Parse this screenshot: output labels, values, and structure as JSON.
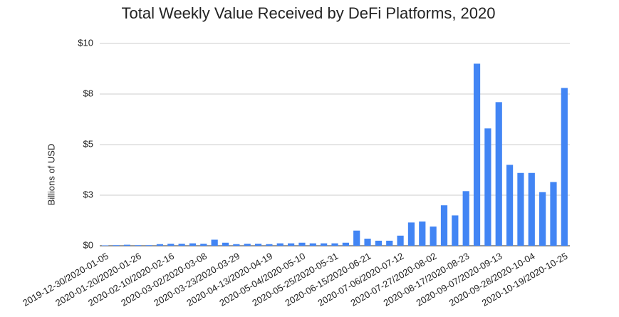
{
  "chart_data": {
    "type": "bar",
    "title": "Total Weekly Value Received by DeFi Platforms, 2020",
    "y_label": "Billions of USD",
    "color": "#4285f4",
    "grid": true,
    "categories": [
      "2019-12-30/2020-01-05",
      null,
      null,
      "2020-01-20/2020-01-26",
      null,
      null,
      "2020-02-10/2020-02-16",
      null,
      null,
      "2020-03-02/2020-03-08",
      null,
      null,
      "2020-03-23/2020-03-29",
      null,
      null,
      "2020-04-13/2020-04-19",
      null,
      null,
      "2020-05-04/2020-05-10",
      null,
      null,
      "2020-05-25/2020-05-31",
      null,
      null,
      "2020-06-15/2020-06-21",
      null,
      null,
      "2020-07-06/2020-07-12",
      null,
      null,
      "2020-07-27/2020-08-02",
      null,
      null,
      "2020-08-17/2020-08-23",
      null,
      null,
      "2020-09-07/2020-09-13",
      null,
      null,
      "2020-09-28/2020-10-04",
      null,
      null,
      "2020-10-19/2020-10-25"
    ],
    "values": [
      0.02,
      0.03,
      0.05,
      0.03,
      0.03,
      0.08,
      0.1,
      0.1,
      0.12,
      0.1,
      0.3,
      0.15,
      0.08,
      0.1,
      0.1,
      0.08,
      0.12,
      0.12,
      0.15,
      0.12,
      0.12,
      0.12,
      0.15,
      0.75,
      0.35,
      0.25,
      0.25,
      0.5,
      1.15,
      1.2,
      0.95,
      2.0,
      1.5,
      2.7,
      9.0,
      5.8,
      7.1,
      4.0,
      3.6,
      3.6,
      2.65,
      3.15,
      7.8
    ],
    "ylim": [
      0,
      10
    ],
    "yticks": [
      {
        "value": 0,
        "label": "$0"
      },
      {
        "value": 2.5,
        "label": "$3"
      },
      {
        "value": 5,
        "label": "$5"
      },
      {
        "value": 7.5,
        "label": "$8"
      },
      {
        "value": 10,
        "label": "$10"
      }
    ]
  }
}
